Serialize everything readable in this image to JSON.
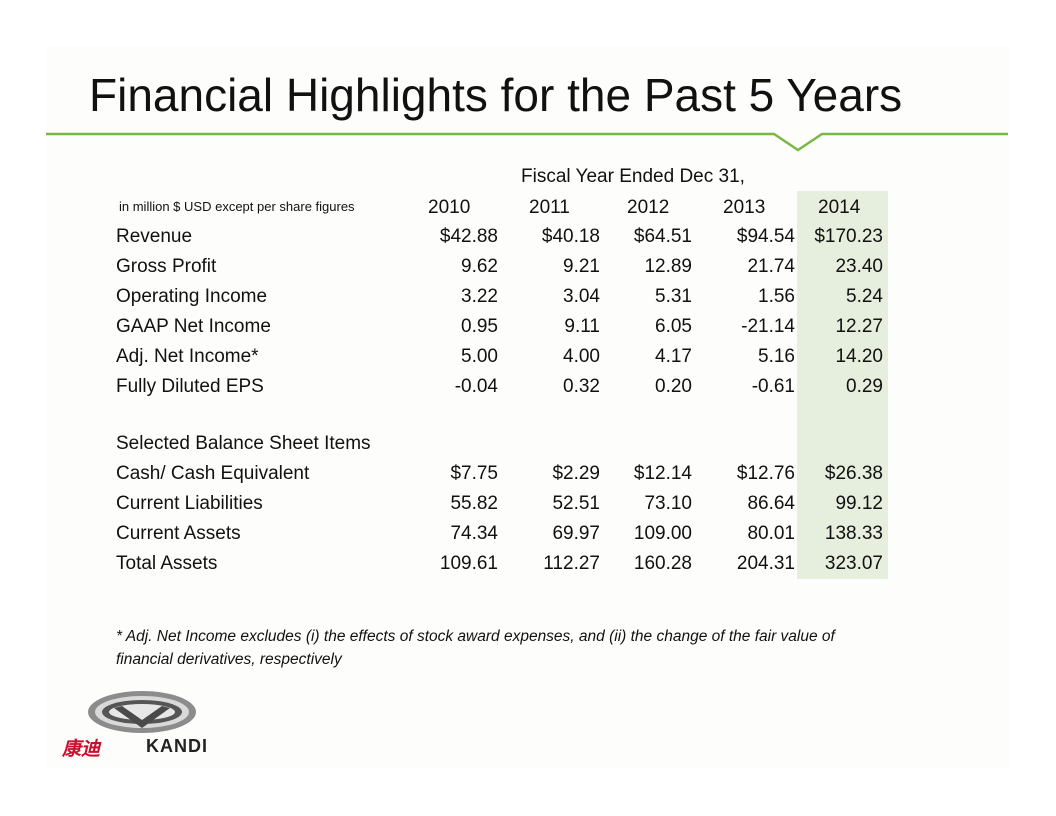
{
  "title": "Financial Highlights for the Past 5 Years",
  "table": {
    "period_header": "Fiscal Year Ended Dec 31,",
    "units_note": "in million $ USD except per share figures",
    "years": [
      "2010",
      "2011",
      "2012",
      "2013",
      "2014"
    ],
    "highlight_year": "2014",
    "income_rows": [
      {
        "label": "Revenue",
        "values": [
          "$42.88",
          "$40.18",
          "$64.51",
          "$94.54",
          "$170.23"
        ]
      },
      {
        "label": "Gross Profit",
        "values": [
          "9.62",
          "9.21",
          "12.89",
          "21.74",
          "23.40"
        ]
      },
      {
        "label": "Operating Income",
        "values": [
          "3.22",
          "3.04",
          "5.31",
          "1.56",
          "5.24"
        ]
      },
      {
        "label": "GAAP Net Income",
        "values": [
          "0.95",
          "9.11",
          "6.05",
          "-21.14",
          "12.27"
        ]
      },
      {
        "label": "Adj. Net Income*",
        "values": [
          "5.00",
          "4.00",
          "4.17",
          "5.16",
          "14.20"
        ]
      },
      {
        "label": "Fully Diluted EPS",
        "values": [
          "-0.04",
          "0.32",
          "0.20",
          "-0.61",
          "0.29"
        ]
      }
    ],
    "balance_heading": "Selected Balance Sheet Items",
    "balance_rows": [
      {
        "label": "Cash/ Cash Equivalent",
        "values": [
          "$7.75",
          "$2.29",
          "$12.14",
          "$12.76",
          "$26.38"
        ]
      },
      {
        "label": "Current Liabilities",
        "values": [
          "55.82",
          "52.51",
          "73.10",
          "86.64",
          "99.12"
        ]
      },
      {
        "label": "Current Assets",
        "values": [
          "74.34",
          "69.97",
          "109.00",
          "80.01",
          "138.33"
        ]
      },
      {
        "label": "Total Assets",
        "values": [
          "109.61",
          "112.27",
          "160.28",
          "204.31",
          "323.07"
        ]
      }
    ]
  },
  "footnote": "* Adj. Net Income excludes (i) the effects of stock award expenses, and (ii) the change of the fair value of financial derivatives, respectively",
  "logo": {
    "chinese_text": "康迪",
    "brand_text": "KANDI",
    "icon": "kandi-logo-icon"
  },
  "colors": {
    "accent_green": "#7ab648",
    "highlight_column": "#e6eedd",
    "logo_red": "#c8102e"
  }
}
